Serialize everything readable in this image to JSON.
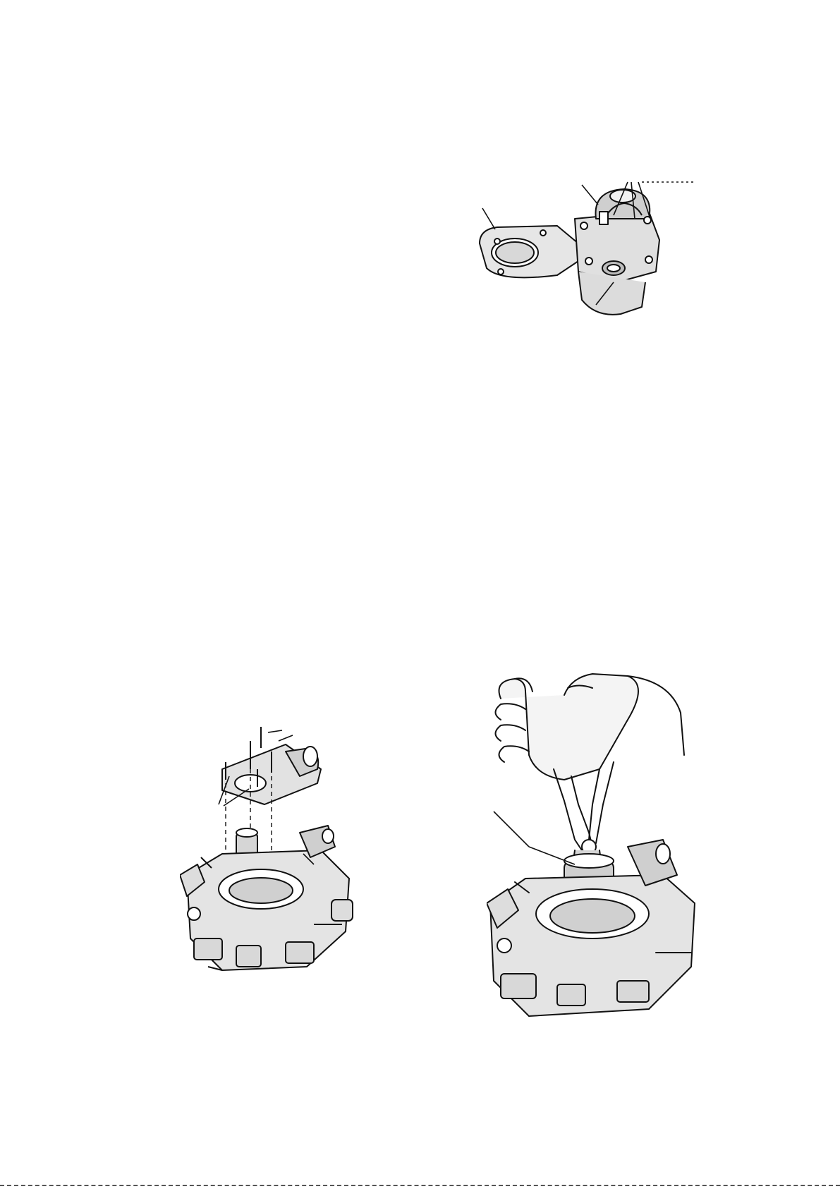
{
  "figures": [
    {
      "id": "fig-regulator",
      "icon": "pressure-regulator-cover-illustration"
    },
    {
      "id": "fig-body-cover",
      "icon": "throttle-body-exploded-illustration"
    },
    {
      "id": "fig-pliers",
      "icon": "hand-with-pliers-on-injector-illustration"
    }
  ],
  "colors": {
    "ink": "#111111",
    "paper": "#ffffff",
    "shade": "#d8d8d8"
  }
}
